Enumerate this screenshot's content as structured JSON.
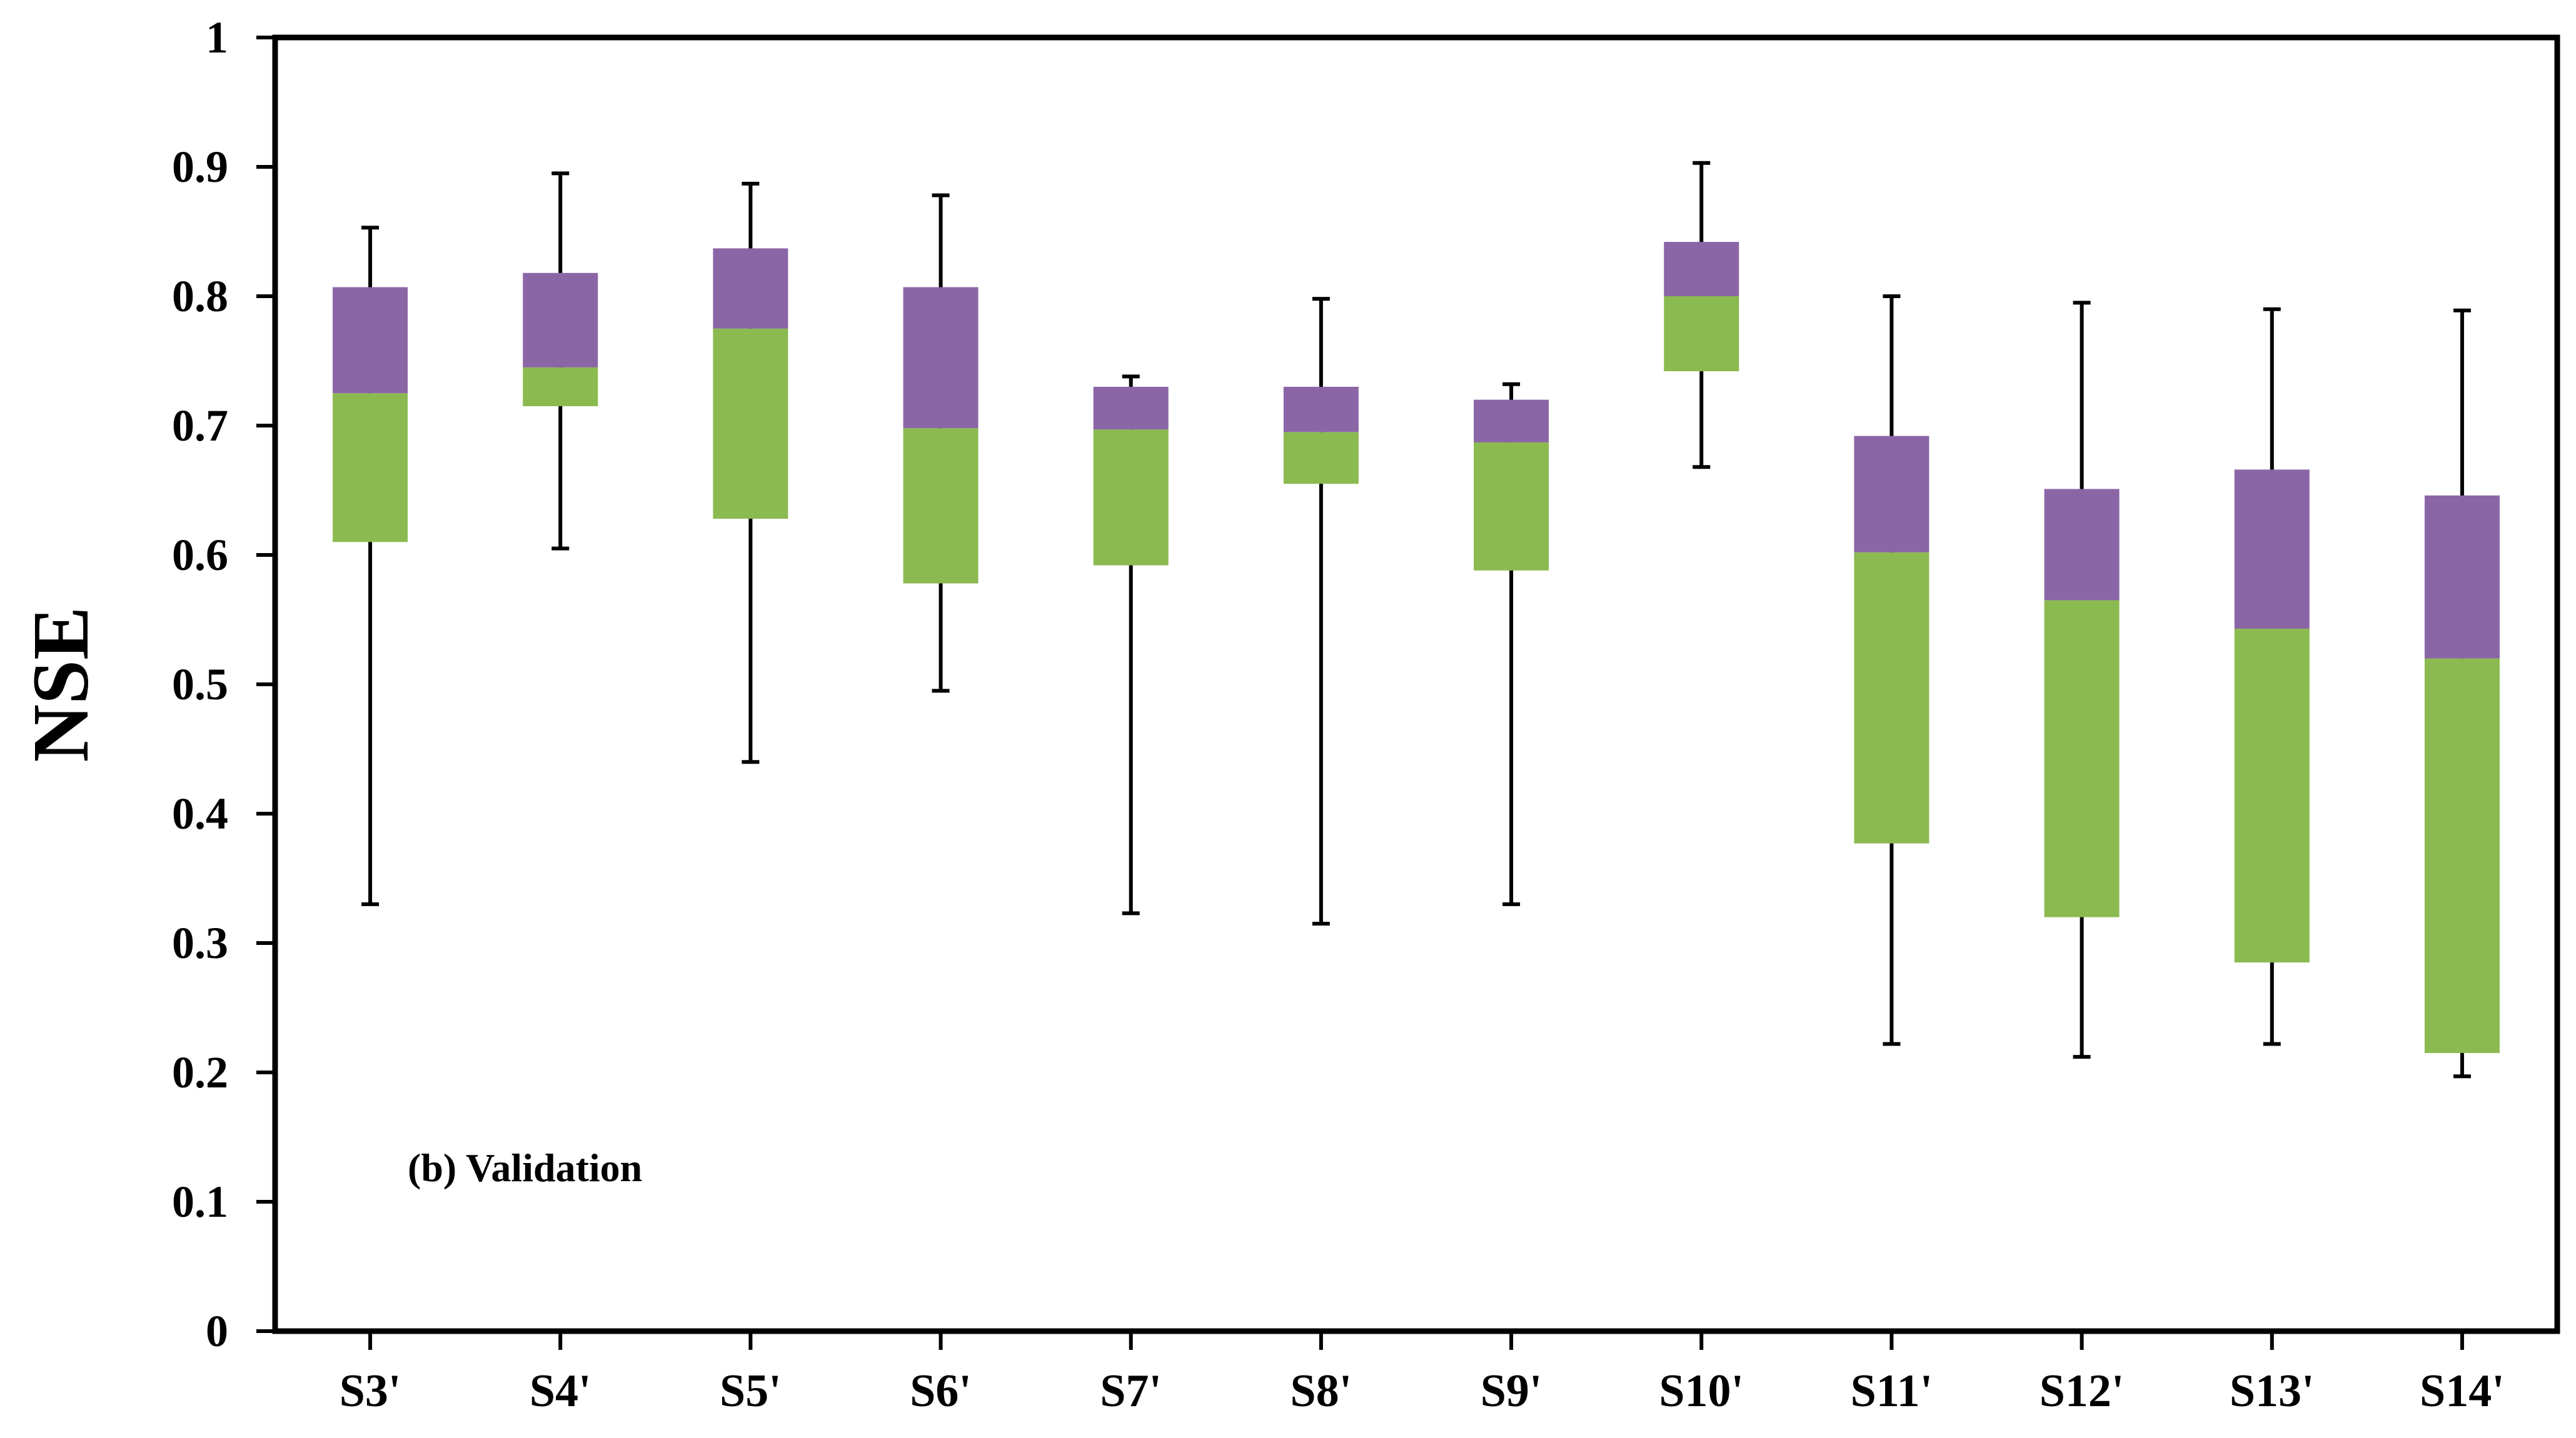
{
  "chart_data": {
    "type": "boxplot",
    "title": "",
    "annotation": "(b) Validation",
    "xlabel": "",
    "ylabel": "NSE",
    "ylim": [
      0,
      1
    ],
    "yticks": [
      "0",
      "0.1",
      "0.2",
      "0.3",
      "0.4",
      "0.5",
      "0.6",
      "0.7",
      "0.8",
      "0.9",
      "1"
    ],
    "grid": false,
    "colors": {
      "lower_box": "#8BBA50",
      "upper_box": "#8B66A6",
      "whisker": "#000000",
      "axis": "#000000"
    },
    "categories": [
      "S3'",
      "S4'",
      "S5'",
      "S6'",
      "S7'",
      "S8'",
      "S9'",
      "S10'",
      "S11'",
      "S12'",
      "S13'",
      "S14'"
    ],
    "series": [
      {
        "name": "S3'",
        "min": 0.33,
        "q1": 0.61,
        "median": 0.725,
        "q3": 0.807,
        "max": 0.853
      },
      {
        "name": "S4'",
        "min": 0.605,
        "q1": 0.715,
        "median": 0.745,
        "q3": 0.818,
        "max": 0.895
      },
      {
        "name": "S5'",
        "min": 0.44,
        "q1": 0.628,
        "median": 0.775,
        "q3": 0.837,
        "max": 0.887
      },
      {
        "name": "S6'",
        "min": 0.495,
        "q1": 0.578,
        "median": 0.698,
        "q3": 0.807,
        "max": 0.878
      },
      {
        "name": "S7'",
        "min": 0.323,
        "q1": 0.592,
        "median": 0.697,
        "q3": 0.73,
        "max": 0.738
      },
      {
        "name": "S8'",
        "min": 0.315,
        "q1": 0.655,
        "median": 0.695,
        "q3": 0.73,
        "max": 0.798
      },
      {
        "name": "S9'",
        "min": 0.33,
        "q1": 0.588,
        "median": 0.687,
        "q3": 0.72,
        "max": 0.732
      },
      {
        "name": "S10'",
        "min": 0.668,
        "q1": 0.742,
        "median": 0.8,
        "q3": 0.842,
        "max": 0.903
      },
      {
        "name": "S11'",
        "min": 0.222,
        "q1": 0.377,
        "median": 0.602,
        "q3": 0.692,
        "max": 0.8
      },
      {
        "name": "S12'",
        "min": 0.212,
        "q1": 0.32,
        "median": 0.565,
        "q3": 0.651,
        "max": 0.795
      },
      {
        "name": "S13'",
        "min": 0.222,
        "q1": 0.285,
        "median": 0.543,
        "q3": 0.666,
        "max": 0.79
      },
      {
        "name": "S14'",
        "min": 0.197,
        "q1": 0.215,
        "median": 0.52,
        "q3": 0.646,
        "max": 0.789
      }
    ]
  }
}
